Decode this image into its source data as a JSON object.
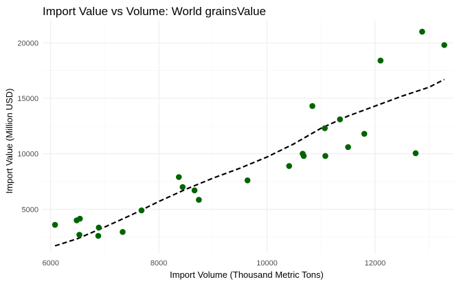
{
  "chart_data": {
    "type": "scatter",
    "title": "Import Value vs Volume: World grainsValue",
    "xlabel": "Import Volume (Thousand Metric Tons)",
    "ylabel": "Import Value (Million USD)",
    "xlim": [
      5850,
      13450
    ],
    "ylim": [
      1050,
      22000
    ],
    "x_ticks": [
      6000,
      8000,
      10000,
      12000
    ],
    "y_ticks": [
      5000,
      10000,
      15000,
      20000
    ],
    "x_tick_labels": [
      "6000",
      "8000",
      "10000",
      "12000"
    ],
    "y_tick_labels": [
      "5000",
      "10000",
      "15000",
      "20000"
    ],
    "grid": true,
    "point_color": "#006400",
    "trend_color": "#000000",
    "points": [
      {
        "x": 6080,
        "y": 3600
      },
      {
        "x": 6480,
        "y": 4000
      },
      {
        "x": 6540,
        "y": 4150
      },
      {
        "x": 6530,
        "y": 2700
      },
      {
        "x": 6890,
        "y": 3350
      },
      {
        "x": 6880,
        "y": 2600
      },
      {
        "x": 7330,
        "y": 2950
      },
      {
        "x": 7680,
        "y": 4900
      },
      {
        "x": 8370,
        "y": 7900
      },
      {
        "x": 8440,
        "y": 7000
      },
      {
        "x": 8660,
        "y": 6700
      },
      {
        "x": 8740,
        "y": 5850
      },
      {
        "x": 9640,
        "y": 7600
      },
      {
        "x": 10410,
        "y": 8900
      },
      {
        "x": 10660,
        "y": 10000
      },
      {
        "x": 10680,
        "y": 9800
      },
      {
        "x": 10840,
        "y": 14300
      },
      {
        "x": 11070,
        "y": 12300
      },
      {
        "x": 11080,
        "y": 9800
      },
      {
        "x": 11350,
        "y": 13100
      },
      {
        "x": 11500,
        "y": 10600
      },
      {
        "x": 11800,
        "y": 11800
      },
      {
        "x": 12100,
        "y": 18400
      },
      {
        "x": 12750,
        "y": 10050
      },
      {
        "x": 12870,
        "y": 21000
      },
      {
        "x": 13280,
        "y": 19800
      }
    ],
    "trend_line": [
      {
        "x": 6080,
        "y": 1700
      },
      {
        "x": 6500,
        "y": 2350
      },
      {
        "x": 7000,
        "y": 3400
      },
      {
        "x": 7500,
        "y": 4500
      },
      {
        "x": 8000,
        "y": 5700
      },
      {
        "x": 8500,
        "y": 6800
      },
      {
        "x": 9000,
        "y": 7800
      },
      {
        "x": 9500,
        "y": 8700
      },
      {
        "x": 10000,
        "y": 9700
      },
      {
        "x": 10500,
        "y": 10900
      },
      {
        "x": 11000,
        "y": 12300
      },
      {
        "x": 11500,
        "y": 13400
      },
      {
        "x": 12000,
        "y": 14300
      },
      {
        "x": 12500,
        "y": 15200
      },
      {
        "x": 13000,
        "y": 16000
      },
      {
        "x": 13280,
        "y": 16700
      }
    ]
  }
}
